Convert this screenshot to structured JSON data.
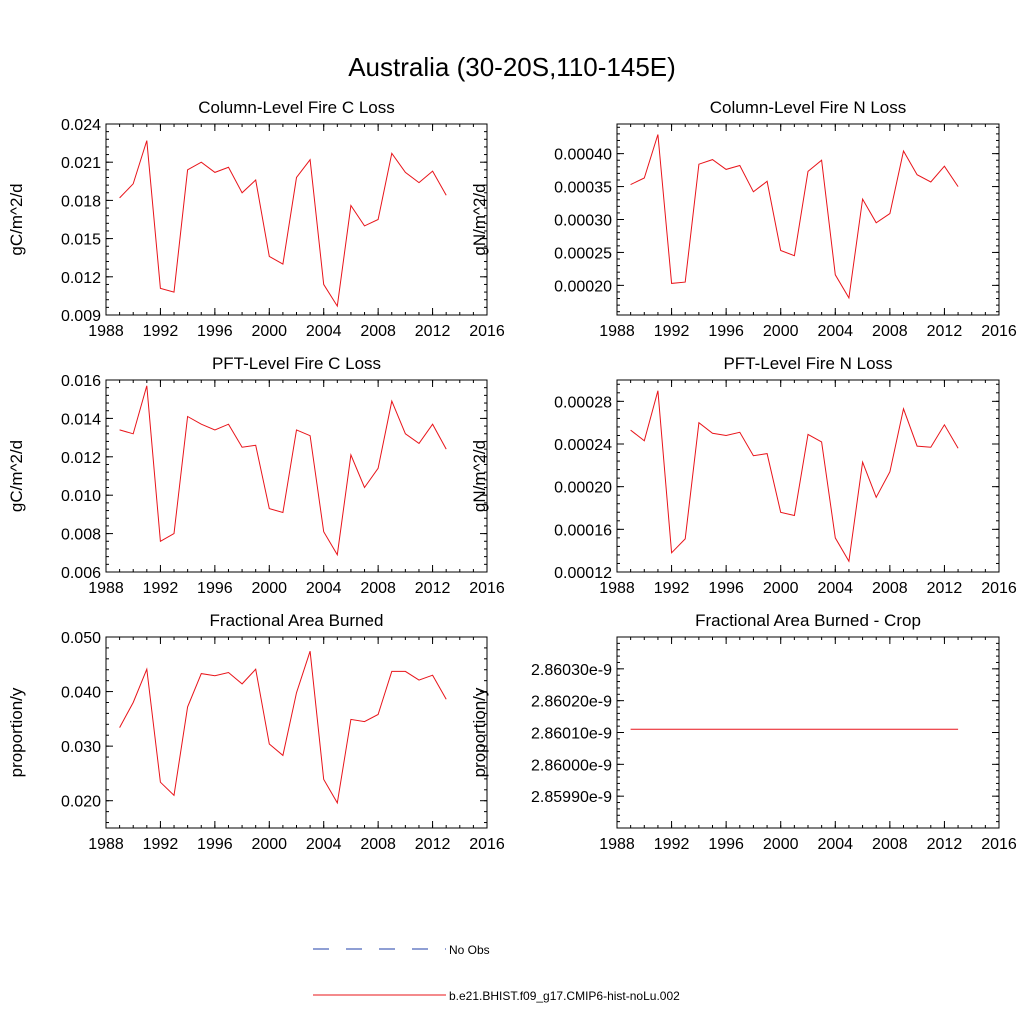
{
  "figure": {
    "title": "Australia (30-20S,110-145E)"
  },
  "legend": {
    "obs_label": "No Obs",
    "model_label": "b.e21.BHIST.f09_g17.CMIP6-hist-noLu.002",
    "obs_color": "#1f3fa8",
    "model_color": "#e8141a"
  },
  "chart_data": [
    {
      "type": "line",
      "title": "Column-Level Fire C Loss",
      "ylabel": "gC/m^2/d",
      "xlim": [
        1988,
        2016
      ],
      "ylim": [
        0.009,
        0.024
      ],
      "x_ticks": [
        1988,
        1992,
        1996,
        2000,
        2004,
        2008,
        2012,
        2016
      ],
      "x_tick_labels": [
        "1988",
        "1992",
        "1996",
        "2000",
        "2004",
        "2008",
        "2012",
        "2016"
      ],
      "y_ticks": [
        0.009,
        0.012,
        0.015,
        0.018,
        0.021,
        0.024
      ],
      "y_tick_labels": [
        "0.009",
        "0.012",
        "0.015",
        "0.018",
        "0.021",
        "0.024"
      ],
      "x": [
        1989,
        1990,
        1991,
        1992,
        1993,
        1994,
        1995,
        1996,
        1997,
        1998,
        1999,
        2000,
        2001,
        2002,
        2003,
        2004,
        2005,
        2006,
        2007,
        2008,
        2009,
        2010,
        2011,
        2012,
        2013
      ],
      "series": [
        {
          "values": [
            0.0182,
            0.0193,
            0.0227,
            0.0111,
            0.0108,
            0.0204,
            0.021,
            0.0202,
            0.0206,
            0.0186,
            0.0196,
            0.0136,
            0.013,
            0.0198,
            0.0212,
            0.0114,
            0.0097,
            0.0176,
            0.016,
            0.0165,
            0.0217,
            0.0202,
            0.0194,
            0.0203,
            0.0184
          ]
        }
      ]
    },
    {
      "type": "line",
      "title": "Column-Level Fire N Loss",
      "ylabel": "gN/m^2/d",
      "xlim": [
        1988,
        2016
      ],
      "ylim": [
        0.000155,
        0.000445
      ],
      "x_ticks": [
        1988,
        1992,
        1996,
        2000,
        2004,
        2008,
        2012,
        2016
      ],
      "x_tick_labels": [
        "1988",
        "1992",
        "1996",
        "2000",
        "2004",
        "2008",
        "2012",
        "2016"
      ],
      "y_ticks": [
        0.0002,
        0.00025,
        0.0003,
        0.00035,
        0.0004
      ],
      "y_tick_labels": [
        "0.00020",
        "0.00025",
        "0.00030",
        "0.00035",
        "0.00040"
      ],
      "x": [
        1989,
        1990,
        1991,
        1992,
        1993,
        1994,
        1995,
        1996,
        1997,
        1998,
        1999,
        2000,
        2001,
        2002,
        2003,
        2004,
        2005,
        2006,
        2007,
        2008,
        2009,
        2010,
        2011,
        2012,
        2013
      ],
      "series": [
        {
          "values": [
            0.000353,
            0.000363,
            0.000429,
            0.000203,
            0.000205,
            0.000384,
            0.000391,
            0.000376,
            0.000382,
            0.000342,
            0.000358,
            0.000253,
            0.000245,
            0.000373,
            0.00039,
            0.000216,
            0.000181,
            0.000331,
            0.000295,
            0.000309,
            0.000404,
            0.000368,
            0.000357,
            0.000381,
            0.00035
          ]
        }
      ]
    },
    {
      "type": "line",
      "title": "PFT-Level Fire C Loss",
      "ylabel": "gC/m^2/d",
      "xlim": [
        1988,
        2016
      ],
      "ylim": [
        0.006,
        0.016
      ],
      "x_ticks": [
        1988,
        1992,
        1996,
        2000,
        2004,
        2008,
        2012,
        2016
      ],
      "x_tick_labels": [
        "1988",
        "1992",
        "1996",
        "2000",
        "2004",
        "2008",
        "2012",
        "2016"
      ],
      "y_ticks": [
        0.006,
        0.008,
        0.01,
        0.012,
        0.014,
        0.016
      ],
      "y_tick_labels": [
        "0.006",
        "0.008",
        "0.010",
        "0.012",
        "0.014",
        "0.016"
      ],
      "x": [
        1989,
        1990,
        1991,
        1992,
        1993,
        1994,
        1995,
        1996,
        1997,
        1998,
        1999,
        2000,
        2001,
        2002,
        2003,
        2004,
        2005,
        2006,
        2007,
        2008,
        2009,
        2010,
        2011,
        2012,
        2013
      ],
      "series": [
        {
          "values": [
            0.0134,
            0.0132,
            0.0157,
            0.0076,
            0.008,
            0.0141,
            0.0137,
            0.0134,
            0.0137,
            0.0125,
            0.0126,
            0.0093,
            0.0091,
            0.0134,
            0.0131,
            0.0081,
            0.0069,
            0.0121,
            0.0104,
            0.0114,
            0.0149,
            0.0132,
            0.0127,
            0.0137,
            0.0124
          ]
        }
      ]
    },
    {
      "type": "line",
      "title": "PFT-Level Fire N Loss",
      "ylabel": "gN/m^2/d",
      "xlim": [
        1988,
        2016
      ],
      "ylim": [
        0.00012,
        0.0003
      ],
      "x_ticks": [
        1988,
        1992,
        1996,
        2000,
        2004,
        2008,
        2012,
        2016
      ],
      "x_tick_labels": [
        "1988",
        "1992",
        "1996",
        "2000",
        "2004",
        "2008",
        "2012",
        "2016"
      ],
      "y_ticks": [
        0.00012,
        0.00016,
        0.0002,
        0.00024,
        0.00028
      ],
      "y_tick_labels": [
        "0.00012",
        "0.00016",
        "0.00020",
        "0.00024",
        "0.00028"
      ],
      "x": [
        1989,
        1990,
        1991,
        1992,
        1993,
        1994,
        1995,
        1996,
        1997,
        1998,
        1999,
        2000,
        2001,
        2002,
        2003,
        2004,
        2005,
        2006,
        2007,
        2008,
        2009,
        2010,
        2011,
        2012,
        2013
      ],
      "series": [
        {
          "values": [
            0.000253,
            0.000243,
            0.00029,
            0.000138,
            0.000151,
            0.00026,
            0.00025,
            0.000248,
            0.000251,
            0.000229,
            0.000231,
            0.000176,
            0.000173,
            0.000249,
            0.000242,
            0.000152,
            0.00013,
            0.000223,
            0.00019,
            0.000214,
            0.000273,
            0.000238,
            0.000237,
            0.000258,
            0.000236
          ]
        }
      ]
    },
    {
      "type": "line",
      "title": "Fractional Area Burned",
      "ylabel": "proportion/y",
      "xlim": [
        1988,
        2016
      ],
      "ylim": [
        0.015,
        0.05
      ],
      "x_ticks": [
        1988,
        1992,
        1996,
        2000,
        2004,
        2008,
        2012,
        2016
      ],
      "x_tick_labels": [
        "1988",
        "1992",
        "1996",
        "2000",
        "2004",
        "2008",
        "2012",
        "2016"
      ],
      "y_ticks": [
        0.02,
        0.03,
        0.04,
        0.05
      ],
      "y_tick_labels": [
        "0.020",
        "0.030",
        "0.040",
        "0.050"
      ],
      "x": [
        1989,
        1990,
        1991,
        1992,
        1993,
        1994,
        1995,
        1996,
        1997,
        1998,
        1999,
        2000,
        2001,
        2002,
        2003,
        2004,
        2005,
        2006,
        2007,
        2008,
        2009,
        2010,
        2011,
        2012,
        2013
      ],
      "series": [
        {
          "values": [
            0.0334,
            0.038,
            0.0441,
            0.0234,
            0.021,
            0.0372,
            0.0433,
            0.0429,
            0.0435,
            0.0414,
            0.0441,
            0.0304,
            0.0283,
            0.0398,
            0.0474,
            0.0239,
            0.0196,
            0.0349,
            0.0345,
            0.0358,
            0.0437,
            0.0437,
            0.0421,
            0.043,
            0.0386
          ]
        }
      ]
    },
    {
      "type": "line",
      "title": "Fractional Area Burned - Crop",
      "ylabel": "proportion/y",
      "xlim": [
        1988,
        2016
      ],
      "ylim": [
        2.8598e-09,
        2.8604e-09
      ],
      "x_ticks": [
        1988,
        1992,
        1996,
        2000,
        2004,
        2008,
        2012,
        2016
      ],
      "x_tick_labels": [
        "1988",
        "1992",
        "1996",
        "2000",
        "2004",
        "2008",
        "2012",
        "2016"
      ],
      "y_ticks": [
        2.8599e-09,
        2.86e-09,
        2.8601e-09,
        2.8602e-09,
        2.8603e-09
      ],
      "y_tick_labels": [
        "2.85990e-9",
        "2.86000e-9",
        "2.86010e-9",
        "2.86020e-9",
        "2.86030e-9"
      ],
      "x": [
        1989,
        2013
      ],
      "series": [
        {
          "values": [
            2.86011e-09,
            2.86011e-09
          ]
        }
      ]
    }
  ]
}
